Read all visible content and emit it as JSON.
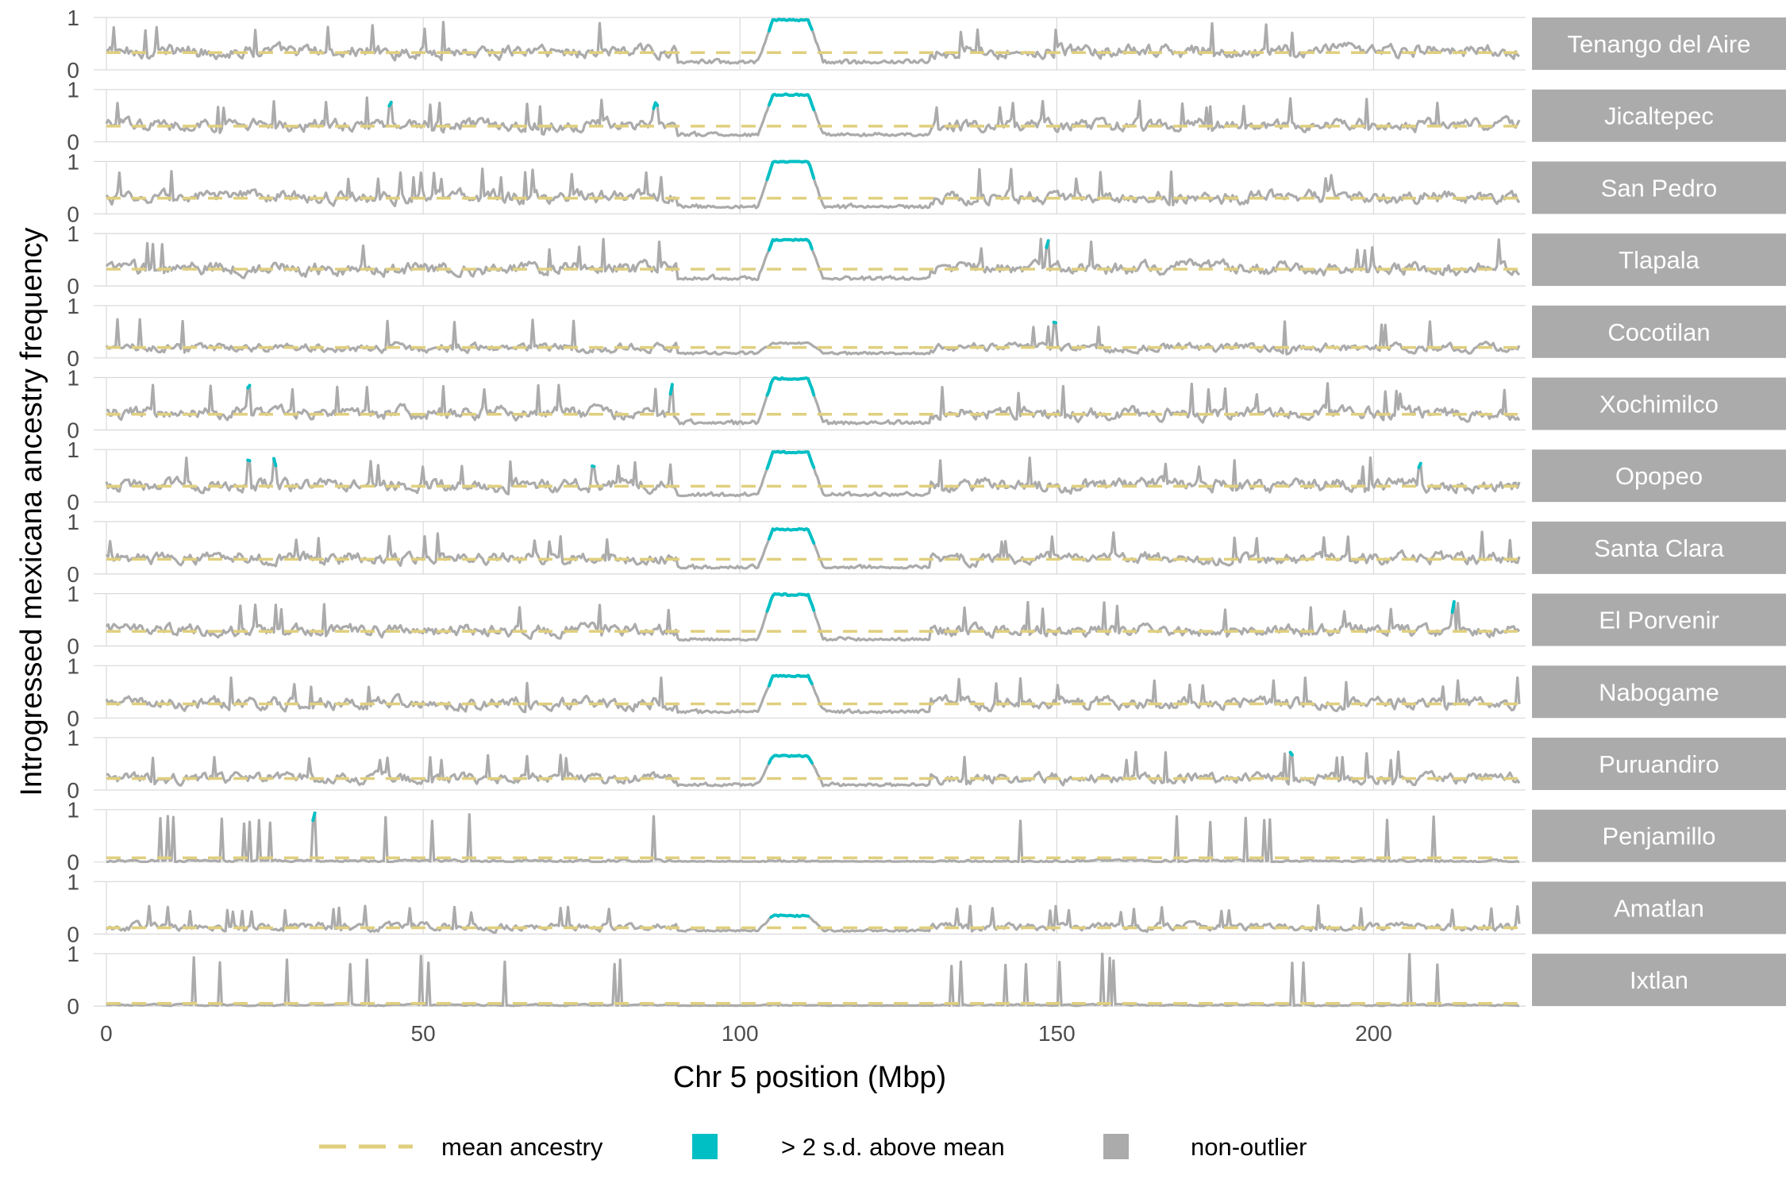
{
  "chart_data": {
    "type": "line",
    "xlabel": "Chr 5 position (Mbp)",
    "ylabel": "Introgressed mexicana ancestry frequency",
    "xlim": [
      -2,
      224
    ],
    "ylim": [
      0,
      1
    ],
    "x_ticks": [
      0,
      50,
      100,
      150,
      200
    ],
    "y_ticks": [
      0,
      1
    ],
    "chrom_length": 223,
    "grid": true,
    "facets": [
      {
        "name": "Tenango del Aire",
        "mean": 0.33,
        "base": 0.35,
        "amp": 0.25,
        "peak": 0.92,
        "inv": 0.95
      },
      {
        "name": "Jicaltepec",
        "mean": 0.3,
        "base": 0.32,
        "amp": 0.22,
        "peak": 0.85,
        "inv": 0.9
      },
      {
        "name": "San Pedro",
        "mean": 0.3,
        "base": 0.32,
        "amp": 0.24,
        "peak": 0.88,
        "inv": 1.0
      },
      {
        "name": "Tlapala",
        "mean": 0.32,
        "base": 0.33,
        "amp": 0.24,
        "peak": 0.9,
        "inv": 0.88
      },
      {
        "name": "Cocotilan",
        "mean": 0.2,
        "base": 0.2,
        "amp": 0.16,
        "peak": 0.75,
        "inv": 0.28
      },
      {
        "name": "Xochimilco",
        "mean": 0.3,
        "base": 0.32,
        "amp": 0.24,
        "peak": 0.9,
        "inv": 0.98
      },
      {
        "name": "Opopeo",
        "mean": 0.3,
        "base": 0.32,
        "amp": 0.24,
        "peak": 0.85,
        "inv": 0.95
      },
      {
        "name": "Santa Clara",
        "mean": 0.28,
        "base": 0.3,
        "amp": 0.22,
        "peak": 0.82,
        "inv": 0.85
      },
      {
        "name": "El Porvenir",
        "mean": 0.28,
        "base": 0.3,
        "amp": 0.22,
        "peak": 0.85,
        "inv": 0.98
      },
      {
        "name": "Nabogame",
        "mean": 0.27,
        "base": 0.28,
        "amp": 0.22,
        "peak": 0.78,
        "inv": 0.8
      },
      {
        "name": "Puruandiro",
        "mean": 0.22,
        "base": 0.22,
        "amp": 0.2,
        "peak": 0.75,
        "inv": 0.65
      },
      {
        "name": "Penjamillo",
        "mean": 0.08,
        "base": 0.02,
        "amp": 0.05,
        "peak": 0.95,
        "inv": 0.02
      },
      {
        "name": "Amatlan",
        "mean": 0.12,
        "base": 0.14,
        "amp": 0.14,
        "peak": 0.55,
        "inv": 0.35
      },
      {
        "name": "Ixtlan",
        "mean": 0.05,
        "base": 0.02,
        "amp": 0.03,
        "peak": 1.0,
        "inv": 0.02
      }
    ],
    "legend": {
      "position": "bottom",
      "items": [
        {
          "label": "mean ancestry",
          "kind": "dashed-line",
          "color": "#E0CF7E"
        },
        {
          "label": "> 2 s.d. above mean",
          "kind": "square",
          "color": "#00BFC4"
        },
        {
          "label": "non-outlier",
          "kind": "square",
          "color": "#ABABAB"
        }
      ]
    },
    "colors": {
      "outlier": "#00BFC4",
      "non_outlier": "#ABABAB",
      "mean": "#E0CF7E",
      "strip_bg": "#ABABAB",
      "grid": "#D9D9D9"
    }
  }
}
